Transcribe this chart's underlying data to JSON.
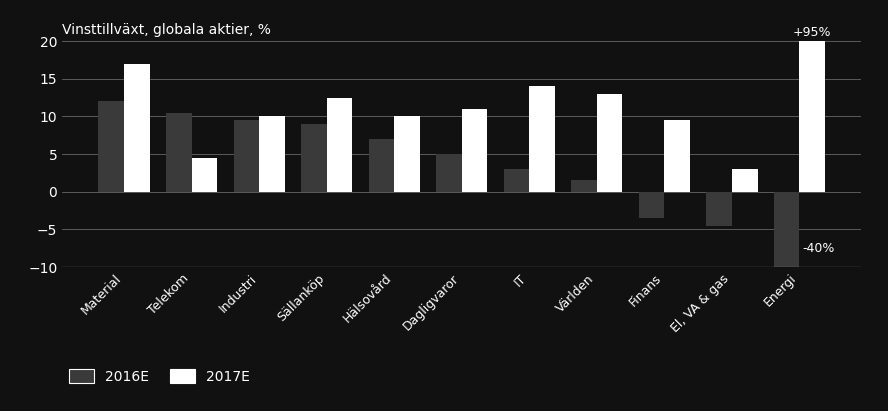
{
  "categories": [
    "Material",
    "Telekom",
    "Industri",
    "Sällanköp",
    "Hälsovård",
    "Dagligvaror",
    "IT",
    "Världen",
    "Finans",
    "El, VA & gas",
    "Energi"
  ],
  "values_2016": [
    12,
    10.5,
    9.5,
    9,
    7,
    5,
    3,
    1.5,
    -3.5,
    -4.5,
    -40
  ],
  "values_2017": [
    17,
    4.5,
    10,
    12.5,
    10,
    11,
    14,
    13,
    9.5,
    3,
    95
  ],
  "color_2016": "#3a3a3a",
  "color_2017": "#ffffff",
  "title": "Vinsttillväxt, globala aktier, %",
  "ylim": [
    -10,
    20
  ],
  "yticks": [
    -10,
    -5,
    0,
    5,
    10,
    15,
    20
  ],
  "background_color": "#111111",
  "text_color": "#ffffff",
  "grid_color": "#666666",
  "annotation_95": "+95%",
  "annotation_40": "-40%",
  "legend_2016": "2016E",
  "legend_2017": "2017E",
  "bar_width": 0.38
}
